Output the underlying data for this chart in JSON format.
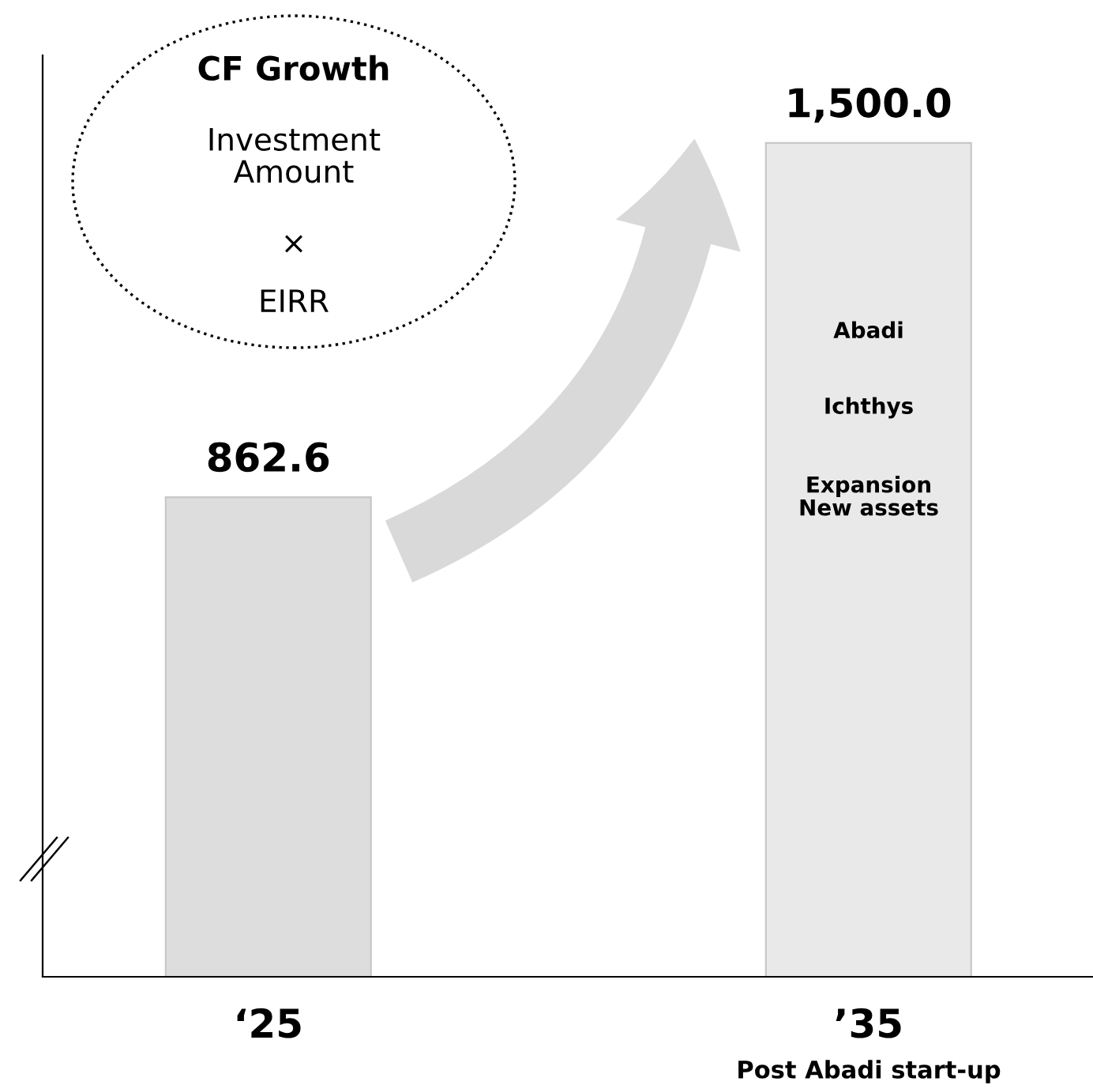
{
  "chart_data": {
    "type": "bar",
    "categories": [
      "‘25",
      "’35"
    ],
    "values": [
      862.6,
      1500.0
    ],
    "colors": [
      "#dddddd",
      "#e9e9e9"
    ],
    "value_labels": [
      "862.6",
      "1,500.0"
    ],
    "tick_labels": "x",
    "grid": false,
    "legend": false,
    "annotations": [
      "CF Growth",
      "Investment\nAmount",
      "×",
      "EIRR",
      "Abadi",
      "Ichthys",
      "Expansion\nNew assets",
      "Post Abadi start-up"
    ]
  }
}
